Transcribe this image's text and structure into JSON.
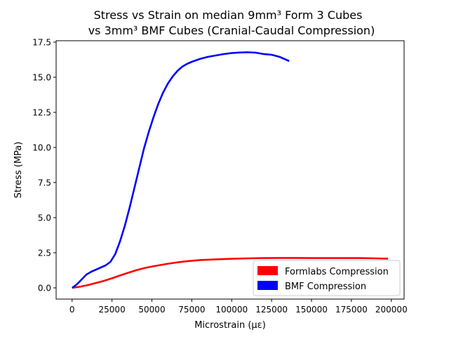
{
  "chart_data": {
    "type": "line",
    "title_line1": "Stress vs Strain on median 9mm³ Form 3 Cubes",
    "title_line2": "vs 3mm³ BMF Cubes (Cranial-Caudal Compression)",
    "xlabel": "Microstrain (µε)",
    "ylabel": "Stress (MPa)",
    "xlim": [
      -10000,
      208000
    ],
    "ylim": [
      -0.8,
      17.6
    ],
    "x_ticks": [
      0,
      25000,
      50000,
      75000,
      100000,
      125000,
      150000,
      175000,
      200000
    ],
    "x_tick_labels": [
      "0",
      "25000",
      "50000",
      "75000",
      "100000",
      "125000",
      "150000",
      "175000",
      "200000"
    ],
    "y_ticks": [
      0.0,
      2.5,
      5.0,
      7.5,
      10.0,
      12.5,
      15.0,
      17.5
    ],
    "y_tick_labels": [
      "0.0",
      "2.5",
      "5.0",
      "7.5",
      "10.0",
      "12.5",
      "15.0",
      "17.5"
    ],
    "grid": false,
    "legend_position": "bottom-right",
    "series": [
      {
        "name": "Formlabs Compression",
        "color": "#ff0000",
        "x": [
          0,
          5000,
          10000,
          15000,
          20000,
          25000,
          30000,
          35000,
          40000,
          45000,
          50000,
          55000,
          60000,
          65000,
          70000,
          75000,
          80000,
          90000,
          100000,
          110000,
          120000,
          130000,
          140000,
          150000,
          160000,
          170000,
          180000,
          190000,
          198000
        ],
        "y": [
          0.0,
          0.08,
          0.2,
          0.35,
          0.5,
          0.68,
          0.88,
          1.07,
          1.25,
          1.4,
          1.52,
          1.62,
          1.72,
          1.8,
          1.87,
          1.93,
          1.98,
          2.03,
          2.07,
          2.1,
          2.12,
          2.13,
          2.13,
          2.12,
          2.12,
          2.12,
          2.12,
          2.1,
          2.08
        ]
      },
      {
        "name": "BMF Compression",
        "color": "#0000ff",
        "x": [
          0,
          3000,
          6000,
          9000,
          12000,
          15000,
          18000,
          21000,
          24000,
          27000,
          30000,
          33000,
          36000,
          39000,
          42000,
          45000,
          48000,
          51000,
          54000,
          57000,
          60000,
          63000,
          66000,
          69000,
          72000,
          75000,
          80000,
          85000,
          90000,
          95000,
          100000,
          105000,
          110000,
          115000,
          120000,
          125000,
          130000,
          133000,
          136000
        ],
        "y": [
          0.0,
          0.25,
          0.6,
          0.95,
          1.15,
          1.3,
          1.45,
          1.6,
          1.85,
          2.4,
          3.3,
          4.4,
          5.7,
          7.1,
          8.5,
          9.9,
          11.1,
          12.15,
          13.1,
          13.9,
          14.55,
          15.05,
          15.45,
          15.75,
          15.95,
          16.1,
          16.3,
          16.45,
          16.55,
          16.65,
          16.72,
          16.76,
          16.78,
          16.75,
          16.65,
          16.6,
          16.45,
          16.3,
          16.15
        ]
      }
    ]
  }
}
